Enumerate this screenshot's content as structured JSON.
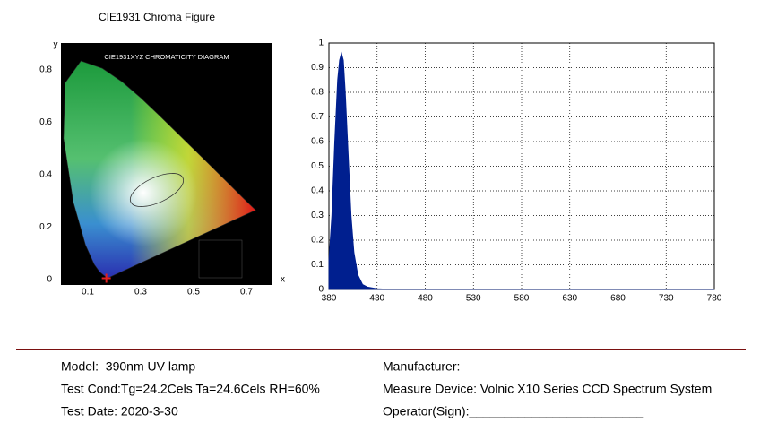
{
  "chart_data": [
    {
      "type": "scatter",
      "title": "CIE1931 Chroma Figure",
      "diagram_label": "CIE1931XYZ CHROMATICITY DIAGRAM",
      "x_label": "x",
      "y_label": "y",
      "xlim": [
        0,
        0.8
      ],
      "ylim": [
        0,
        0.9
      ],
      "xticks": [
        0.1,
        0.3,
        0.5,
        0.7
      ],
      "yticks": [
        0,
        0.2,
        0.4,
        0.6,
        0.8
      ],
      "point": {
        "x": 0.17,
        "y": 0.005,
        "color": "#e02020"
      }
    },
    {
      "type": "area",
      "color": "#001f8f",
      "x": [
        380,
        383,
        386,
        389,
        391,
        393,
        395,
        397,
        400,
        403,
        406,
        410,
        415,
        420,
        430,
        450,
        500,
        600,
        700,
        780
      ],
      "values": [
        0.12,
        0.3,
        0.6,
        0.85,
        0.93,
        0.96,
        0.93,
        0.8,
        0.55,
        0.3,
        0.15,
        0.06,
        0.02,
        0.01,
        0.003,
        0,
        0,
        0,
        0,
        0
      ],
      "xlim": [
        380,
        780
      ],
      "ylim": [
        0,
        1
      ],
      "xticks": [
        380,
        430,
        480,
        530,
        580,
        630,
        680,
        730,
        780
      ],
      "yticks": [
        0,
        0.1,
        0.2,
        0.3,
        0.4,
        0.5,
        0.6,
        0.7,
        0.8,
        0.9,
        1
      ],
      "grid": true
    }
  ],
  "info": {
    "left": [
      "Model:  390nm UV lamp",
      "Test Cond:Tg=24.2Cels Ta=24.6Cels RH=60%",
      "Test Date: 2020-3-30"
    ],
    "right": [
      "Manufacturer:",
      "Measure Device: Volnic X10 Series CCD Spectrum System",
      "Operator(Sign):_________________________"
    ]
  }
}
